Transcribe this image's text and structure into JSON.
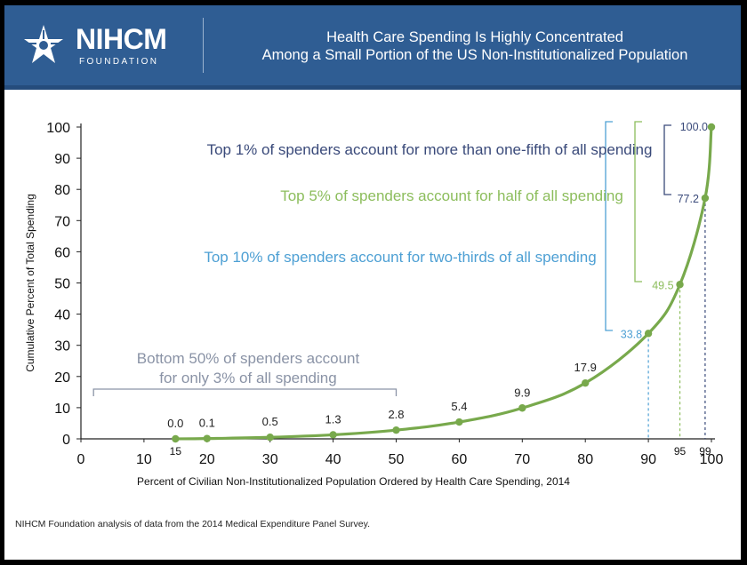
{
  "header": {
    "logo_name": "NIHCM",
    "logo_sub": "FOUNDATION",
    "title_line1": "Health Care Spending Is Highly Concentrated",
    "title_line2": "Among a Small Portion of the US Non-Institutionalized Population"
  },
  "footer": {
    "source": "NIHCM Foundation analysis of data from the 2014 Medical Expenditure Panel Survey."
  },
  "colors": {
    "header_bg": "#2f5d93",
    "line": "#78a94c",
    "top1": "#3a4a7a",
    "top5": "#8cbd5c",
    "top10": "#4ea0d4",
    "bottom50": "#8a93a6"
  },
  "chart_data": {
    "type": "line",
    "title": "",
    "xlabel": "Percent of Civilian Non-Institutionalized Population Ordered by Health Care Spending, 2014",
    "ylabel": "Cumulative Percent of Total Spending",
    "xlim": [
      0,
      100
    ],
    "ylim": [
      0,
      100
    ],
    "x_ticks": [
      0,
      10,
      20,
      30,
      40,
      50,
      60,
      70,
      80,
      90,
      100
    ],
    "y_ticks": [
      0,
      10,
      20,
      30,
      40,
      50,
      60,
      70,
      80,
      90,
      100
    ],
    "extra_x_ticks": [
      15,
      95,
      99
    ],
    "series": [
      {
        "x": [
          15,
          20,
          30,
          40,
          50,
          60,
          70,
          80,
          90,
          95,
          99,
          100
        ],
        "y": [
          0.0,
          0.1,
          0.5,
          1.3,
          2.8,
          5.4,
          9.9,
          17.9,
          33.8,
          49.5,
          77.2,
          100.0
        ]
      }
    ],
    "point_labels": [
      "0.0",
      "0.1",
      "0.5",
      "1.3",
      "2.8",
      "5.4",
      "9.9",
      "17.9",
      "33.8",
      "49.5",
      "77.2",
      "100.0"
    ],
    "annotations": {
      "top1": "Top 1% of spenders account for more than one-fifth of all spending",
      "top5": "Top 5% of spenders account for half of all spending",
      "top10": "Top 10% of spenders account for two-thirds of all spending",
      "bottom50_line1": "Bottom 50% of spenders account",
      "bottom50_line2": "for only 3% of all spending"
    },
    "grid": false,
    "legend": "none"
  }
}
